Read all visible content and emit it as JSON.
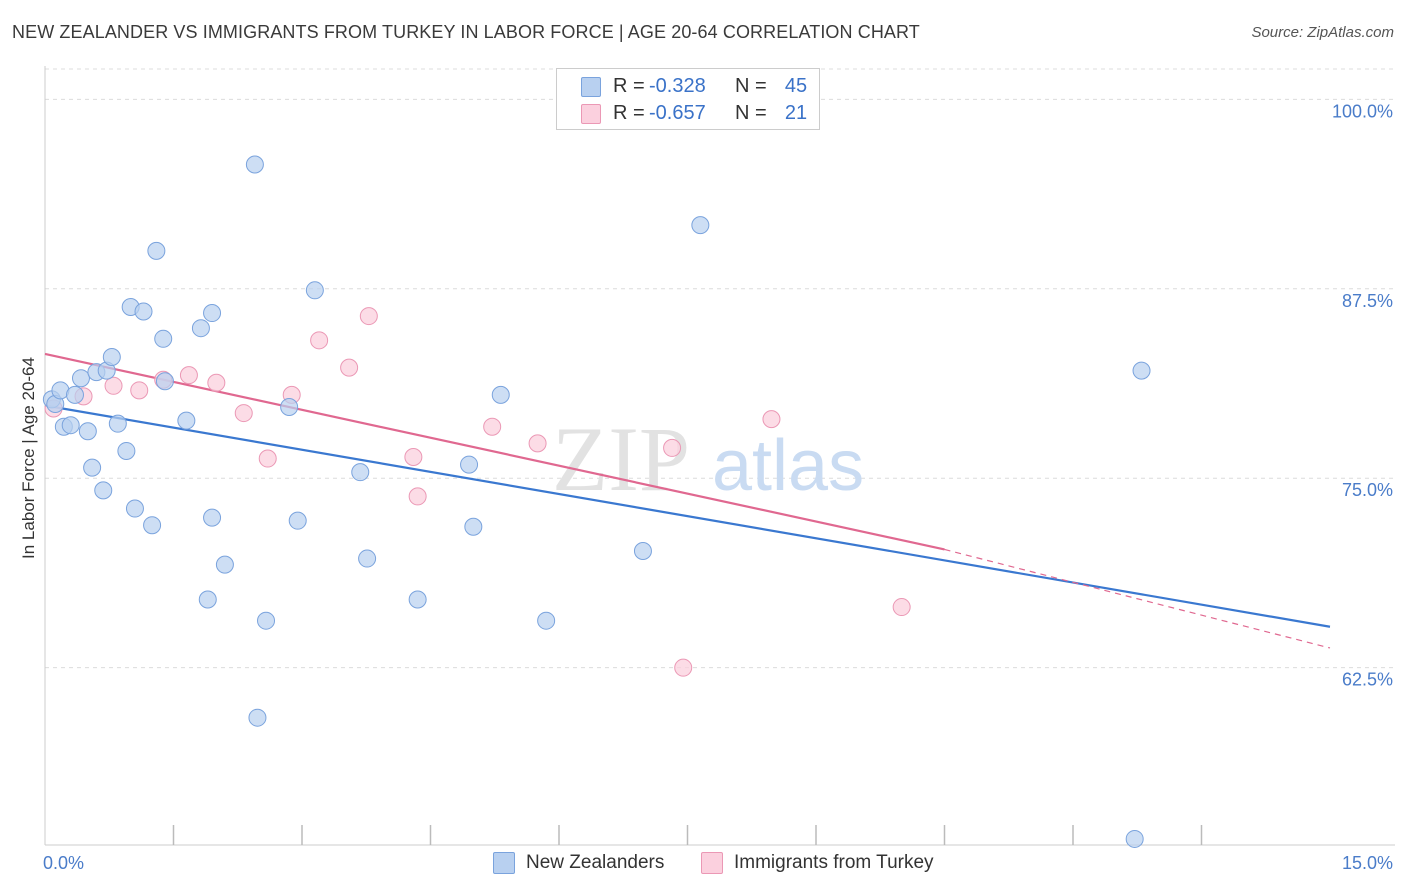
{
  "title": "NEW ZEALANDER VS IMMIGRANTS FROM TURKEY IN LABOR FORCE | AGE 20-64 CORRELATION CHART",
  "source": "Source: ZipAtlas.com",
  "watermark": {
    "zip": "ZIP",
    "atlas": "atlas"
  },
  "legend_top": {
    "series": [
      {
        "r_label": "R =",
        "r_value": "-0.328",
        "n_label": "N =",
        "n_value": "45"
      },
      {
        "r_label": "R =",
        "r_value": "-0.657",
        "n_label": "N =",
        "n_value": "21"
      }
    ]
  },
  "legend_bottom": [
    "New Zealanders",
    "Immigrants from Turkey"
  ],
  "colors": {
    "blue_fill": "#b8d0f0",
    "blue_stroke": "#7aa3dd",
    "blue_line": "#3a78d0",
    "pink_fill": "#fbd0de",
    "pink_stroke": "#eb98b5",
    "pink_line": "#e06890",
    "tick": "#4a7cc9",
    "grid": "#dcdcdc"
  },
  "chart_data": {
    "type": "scatter",
    "title": "NEW ZEALANDER VS IMMIGRANTS FROM TURKEY IN LABOR FORCE | AGE 20-64 CORRELATION CHART",
    "xlabel": "",
    "ylabel": "In Labor Force | Age 20-64",
    "xlim": [
      0,
      15
    ],
    "ylim": [
      50.8,
      102.2
    ],
    "x_tick_labels": [
      "0.0%",
      "15.0%"
    ],
    "y_ticks": [
      62.5,
      75.0,
      87.5,
      100.0
    ],
    "y_tick_labels": [
      "62.5%",
      "75.0%",
      "87.5%",
      "100.0%"
    ],
    "x_minor_ticks": [
      1.5,
      3.0,
      4.5,
      6.0,
      7.5,
      9.0,
      10.5,
      12.0,
      13.5
    ],
    "series": [
      {
        "name": "New Zealanders",
        "R": -0.328,
        "N": 45,
        "trend": {
          "x": [
            0.0,
            15.0
          ],
          "y": [
            79.8,
            65.2
          ],
          "style": "solid"
        },
        "points": [
          {
            "x": 0.08,
            "y": 80.2
          },
          {
            "x": 0.12,
            "y": 79.9
          },
          {
            "x": 0.18,
            "y": 80.8
          },
          {
            "x": 0.22,
            "y": 78.4
          },
          {
            "x": 0.3,
            "y": 78.5
          },
          {
            "x": 0.35,
            "y": 80.5
          },
          {
            "x": 0.42,
            "y": 81.6
          },
          {
            "x": 0.5,
            "y": 78.1
          },
          {
            "x": 0.55,
            "y": 75.7
          },
          {
            "x": 0.6,
            "y": 82.0
          },
          {
            "x": 0.68,
            "y": 74.2
          },
          {
            "x": 0.72,
            "y": 82.1
          },
          {
            "x": 0.78,
            "y": 83.0
          },
          {
            "x": 0.85,
            "y": 78.6
          },
          {
            "x": 0.95,
            "y": 76.8
          },
          {
            "x": 1.0,
            "y": 86.3
          },
          {
            "x": 1.05,
            "y": 73.0
          },
          {
            "x": 1.15,
            "y": 86.0
          },
          {
            "x": 1.25,
            "y": 71.9
          },
          {
            "x": 1.3,
            "y": 90.0
          },
          {
            "x": 1.38,
            "y": 84.2
          },
          {
            "x": 1.4,
            "y": 81.4
          },
          {
            "x": 1.65,
            "y": 78.8
          },
          {
            "x": 1.82,
            "y": 84.9
          },
          {
            "x": 1.9,
            "y": 67.0
          },
          {
            "x": 1.95,
            "y": 85.9
          },
          {
            "x": 1.95,
            "y": 72.4
          },
          {
            "x": 2.1,
            "y": 69.3
          },
          {
            "x": 2.45,
            "y": 95.7
          },
          {
            "x": 2.48,
            "y": 59.2
          },
          {
            "x": 2.58,
            "y": 65.6
          },
          {
            "x": 2.85,
            "y": 79.7
          },
          {
            "x": 2.95,
            "y": 72.2
          },
          {
            "x": 3.15,
            "y": 87.4
          },
          {
            "x": 3.68,
            "y": 75.4
          },
          {
            "x": 3.76,
            "y": 69.7
          },
          {
            "x": 4.35,
            "y": 67.0
          },
          {
            "x": 4.95,
            "y": 75.9
          },
          {
            "x": 5.0,
            "y": 71.8
          },
          {
            "x": 5.32,
            "y": 80.5
          },
          {
            "x": 5.85,
            "y": 65.6
          },
          {
            "x": 6.98,
            "y": 70.2
          },
          {
            "x": 7.65,
            "y": 91.7
          },
          {
            "x": 12.8,
            "y": 82.1
          },
          {
            "x": 12.72,
            "y": 51.2
          }
        ]
      },
      {
        "name": "Immigrants from Turkey",
        "R": -0.657,
        "N": 21,
        "trend": {
          "x": [
            0.0,
            10.5
          ],
          "y": [
            83.2,
            70.3
          ],
          "style": "solid",
          "extension": {
            "x": [
              10.5,
              15.0
            ],
            "y": [
              70.3,
              63.8
            ],
            "style": "dashed"
          }
        },
        "points": [
          {
            "x": 0.1,
            "y": 79.6
          },
          {
            "x": 0.45,
            "y": 80.4
          },
          {
            "x": 0.8,
            "y": 81.1
          },
          {
            "x": 1.1,
            "y": 80.8
          },
          {
            "x": 1.38,
            "y": 81.5
          },
          {
            "x": 1.68,
            "y": 81.8
          },
          {
            "x": 2.0,
            "y": 81.3
          },
          {
            "x": 2.32,
            "y": 79.3
          },
          {
            "x": 2.6,
            "y": 76.3
          },
          {
            "x": 2.88,
            "y": 80.5
          },
          {
            "x": 3.2,
            "y": 84.1
          },
          {
            "x": 3.55,
            "y": 82.3
          },
          {
            "x": 3.78,
            "y": 85.7
          },
          {
            "x": 4.3,
            "y": 76.4
          },
          {
            "x": 4.35,
            "y": 73.8
          },
          {
            "x": 5.22,
            "y": 78.4
          },
          {
            "x": 5.75,
            "y": 77.3
          },
          {
            "x": 7.32,
            "y": 77.0
          },
          {
            "x": 7.45,
            "y": 62.5
          },
          {
            "x": 8.48,
            "y": 78.9
          },
          {
            "x": 10.0,
            "y": 66.5
          }
        ]
      }
    ]
  }
}
